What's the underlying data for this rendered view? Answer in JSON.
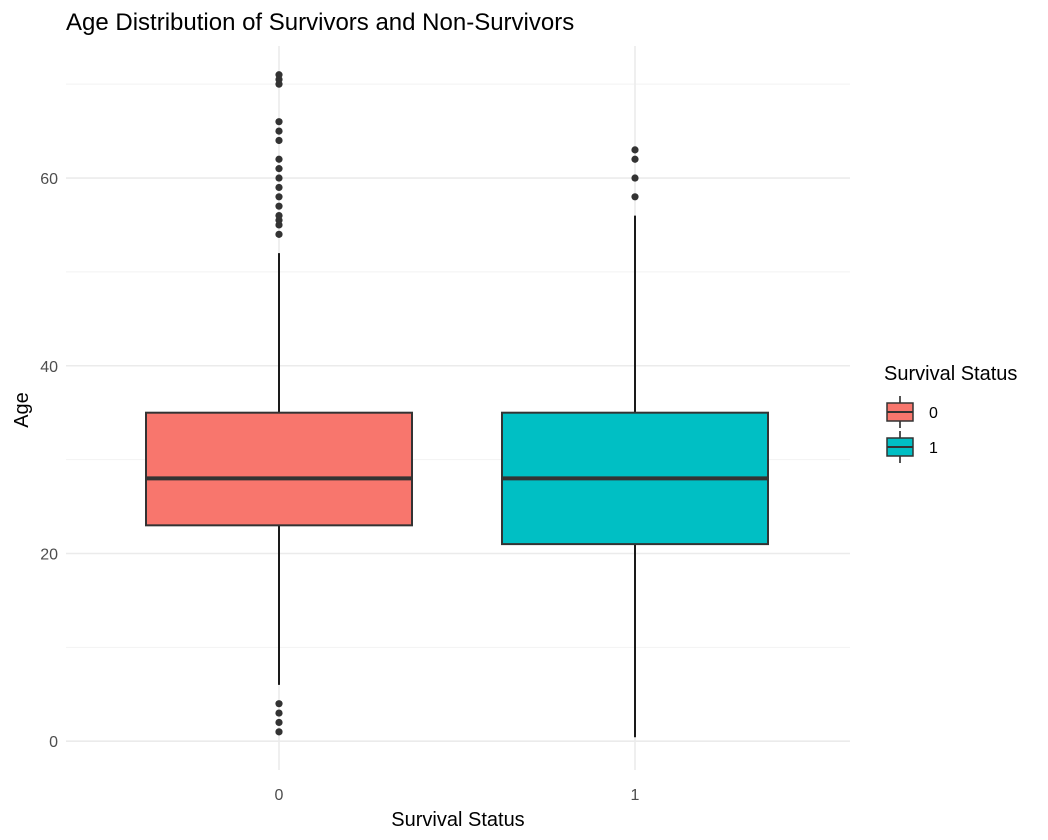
{
  "chart_data": {
    "type": "boxplot",
    "title": "Age Distribution of Survivors and Non-Survivors",
    "xlabel": "Survival Status",
    "ylabel": "Age",
    "ylim": [
      -2,
      73
    ],
    "y_ticks": [
      0,
      20,
      40,
      60
    ],
    "y_minor_ticks": [
      10,
      30,
      50,
      70
    ],
    "grid": true,
    "legend": {
      "title": "Survival Status",
      "placement": "right",
      "entries": [
        "0",
        "1"
      ]
    },
    "categories": [
      "0",
      "1"
    ],
    "boxes": [
      {
        "category": "0",
        "color": "#F8766D",
        "whisker_low": 6,
        "q1": 23,
        "median": 28,
        "q3": 35,
        "whisker_high": 52,
        "outliers": [
          1,
          2,
          3,
          4,
          54,
          55,
          55.5,
          56,
          57,
          58,
          59,
          60,
          61,
          62,
          64,
          65,
          66,
          70,
          70.5,
          71
        ]
      },
      {
        "category": "1",
        "color": "#00BFC4",
        "whisker_low": 0.42,
        "q1": 21,
        "median": 28,
        "q3": 35,
        "whisker_high": 56,
        "outliers": [
          58,
          60,
          62,
          63
        ]
      }
    ]
  }
}
